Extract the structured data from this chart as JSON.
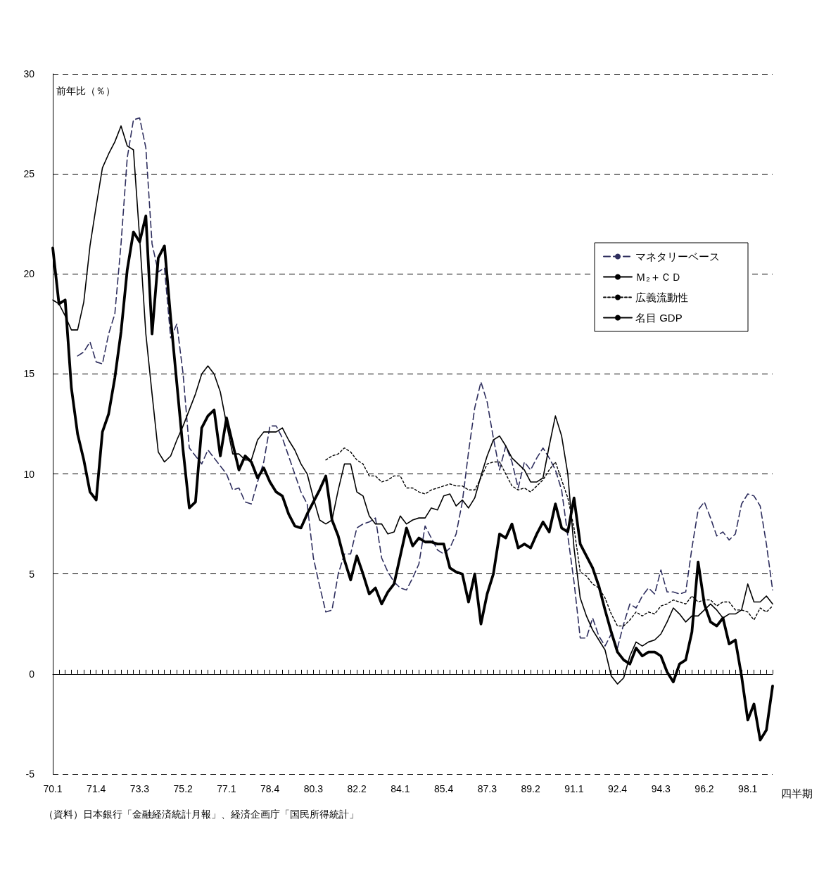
{
  "chart_data": {
    "type": "line",
    "ylabel": "前年比（％）",
    "xlabel": "四半期",
    "annotations": [
      "（資料）日本銀行「金融経済統計月報」、経済企画庁「国民所得統計」"
    ],
    "categories": [
      "70.1",
      null,
      null,
      null,
      null,
      null,
      null,
      "71.4",
      null,
      null,
      null,
      null,
      null,
      null,
      "73.3",
      null,
      null,
      null,
      null,
      null,
      null,
      "75.2",
      null,
      null,
      null,
      null,
      null,
      null,
      "77.1",
      null,
      null,
      null,
      null,
      null,
      null,
      "78.4",
      null,
      null,
      null,
      null,
      null,
      null,
      "80.3",
      null,
      null,
      null,
      null,
      null,
      null,
      "82.2",
      null,
      null,
      null,
      null,
      null,
      null,
      "84.1",
      null,
      null,
      null,
      null,
      null,
      null,
      "85.4",
      null,
      null,
      null,
      null,
      null,
      null,
      "87.3",
      null,
      null,
      null,
      null,
      null,
      null,
      "89.2",
      null,
      null,
      null,
      null,
      null,
      null,
      "91.1",
      null,
      null,
      null,
      null,
      null,
      null,
      "92.4",
      null,
      null,
      null,
      null,
      null,
      null,
      "94.3",
      null,
      null,
      null,
      null,
      null,
      null,
      "96.2",
      null,
      null,
      null,
      null,
      null,
      null,
      "98.1",
      null,
      null,
      null,
      null
    ],
    "series": [
      {
        "name": "マネタリーベース",
        "color": "#2e2e5e",
        "line_style": "dashed",
        "values": [
          null,
          null,
          null,
          null,
          15.9,
          16.1,
          16.6,
          15.6,
          15.5,
          17.0,
          18.0,
          21.5,
          25.8,
          27.7,
          27.8,
          26.3,
          21.5,
          20.1,
          20.3,
          16.8,
          17.5,
          15.0,
          11.3,
          10.9,
          10.5,
          11.2,
          10.8,
          10.4,
          10.0,
          9.2,
          9.3,
          8.6,
          8.5,
          9.6,
          10.6,
          12.4,
          12.4,
          11.8,
          10.9,
          10.0,
          9.1,
          8.5,
          5.8,
          4.4,
          3.1,
          3.2,
          5.0,
          6.0,
          6.0,
          7.3,
          7.5,
          7.6,
          7.8,
          5.8,
          5.1,
          4.6,
          4.3,
          4.2,
          4.8,
          5.5,
          7.4,
          6.8,
          6.2,
          6.0,
          6.3,
          7.0,
          8.6,
          11.1,
          13.3,
          14.6,
          13.6,
          11.8,
          10.2,
          11.4,
          10.6,
          9.3,
          10.6,
          10.2,
          10.8,
          11.3,
          10.8,
          10.2,
          9.2,
          6.9,
          4.6,
          1.8,
          1.8,
          2.8,
          1.9,
          1.4,
          2.0,
          1.3,
          2.5,
          3.5,
          3.3,
          3.9,
          4.3,
          4.0,
          5.2,
          4.1,
          4.1,
          4.0,
          4.1,
          6.3,
          8.2,
          8.6,
          7.8,
          6.9,
          7.1,
          6.7,
          7.0,
          8.5,
          9.0,
          8.9,
          8.4,
          6.5,
          4.2
        ]
      },
      {
        "name": "Ｍ₂＋ＣＤ",
        "color": "#000000",
        "line_style": "solid",
        "values": [
          18.7,
          18.5,
          17.9,
          17.2,
          17.2,
          18.6,
          21.4,
          23.4,
          25.3,
          26.0,
          26.6,
          27.4,
          26.4,
          26.2,
          21.8,
          17.0,
          14.0,
          11.1,
          10.6,
          10.9,
          11.7,
          12.4,
          13.2,
          14.0,
          15.0,
          15.4,
          15.0,
          14.1,
          12.5,
          11.0,
          11.0,
          10.7,
          10.7,
          11.7,
          12.1,
          12.1,
          12.1,
          12.3,
          11.7,
          11.2,
          10.5,
          10.0,
          8.8,
          7.7,
          7.5,
          7.7,
          9.2,
          10.5,
          10.5,
          9.1,
          8.9,
          7.9,
          7.5,
          7.5,
          7.0,
          7.1,
          7.9,
          7.5,
          7.7,
          7.8,
          7.8,
          8.3,
          8.2,
          8.9,
          9.0,
          8.4,
          8.7,
          8.3,
          8.8,
          9.9,
          10.9,
          11.7,
          11.9,
          11.4,
          10.8,
          10.5,
          10.2,
          9.6,
          9.6,
          9.8,
          11.4,
          12.9,
          11.9,
          10.0,
          6.3,
          3.8,
          2.9,
          2.2,
          1.7,
          1.2,
          -0.1,
          -0.5,
          -0.2,
          0.9,
          1.6,
          1.4,
          1.6,
          1.7,
          2.0,
          2.6,
          3.3,
          3.0,
          2.6,
          2.9,
          2.9,
          3.2,
          3.5,
          3.2,
          2.8,
          3.0,
          3.0,
          3.2,
          4.5,
          3.6,
          3.6,
          3.9,
          3.5
        ]
      },
      {
        "name": "広義流動性",
        "color": "#000000",
        "line_style": "dotted",
        "values": [
          null,
          null,
          null,
          null,
          null,
          null,
          null,
          null,
          null,
          null,
          null,
          null,
          null,
          null,
          null,
          null,
          null,
          null,
          null,
          null,
          null,
          null,
          null,
          null,
          null,
          null,
          null,
          null,
          null,
          null,
          null,
          null,
          null,
          null,
          null,
          null,
          null,
          null,
          null,
          null,
          null,
          null,
          null,
          null,
          10.7,
          10.9,
          11.0,
          11.3,
          11.1,
          10.7,
          10.5,
          9.9,
          9.9,
          9.6,
          9.7,
          9.9,
          9.9,
          9.3,
          9.3,
          9.1,
          9.0,
          9.2,
          9.3,
          9.4,
          9.5,
          9.4,
          9.4,
          9.2,
          9.2,
          9.8,
          10.5,
          10.6,
          10.6,
          10.0,
          9.4,
          9.2,
          9.3,
          9.1,
          9.4,
          9.7,
          10.2,
          10.6,
          9.7,
          8.8,
          7.3,
          5.1,
          4.9,
          4.5,
          4.3,
          3.8,
          3.0,
          2.4,
          2.4,
          2.7,
          3.1,
          2.9,
          3.1,
          3.0,
          3.4,
          3.5,
          3.7,
          3.6,
          3.5,
          3.9,
          3.6,
          3.7,
          3.7,
          3.4,
          3.6,
          3.6,
          3.2,
          3.2,
          3.1,
          2.7,
          3.3,
          3.1,
          3.4
        ]
      },
      {
        "name": "名目 GDP",
        "color": "#000000",
        "line_style": "solid",
        "values": [
          21.3,
          18.5,
          18.7,
          14.3,
          12.0,
          10.7,
          9.1,
          8.7,
          12.1,
          13.0,
          14.8,
          17.1,
          20.2,
          22.1,
          21.6,
          22.9,
          17.0,
          20.8,
          21.4,
          17.8,
          14.5,
          11.2,
          8.3,
          8.6,
          12.3,
          12.9,
          13.2,
          10.9,
          12.8,
          11.5,
          10.2,
          10.9,
          10.6,
          9.8,
          10.3,
          9.6,
          9.1,
          8.9,
          8.0,
          7.4,
          7.3,
          8.0,
          8.6,
          9.2,
          9.9,
          7.7,
          6.9,
          5.7,
          4.7,
          5.9,
          5.0,
          4.0,
          4.3,
          3.5,
          4.1,
          4.5,
          5.9,
          7.3,
          6.4,
          6.8,
          6.6,
          6.6,
          6.5,
          6.5,
          5.3,
          5.1,
          5.0,
          3.6,
          5.0,
          2.5,
          4.0,
          5.0,
          7.0,
          6.8,
          7.5,
          6.3,
          6.5,
          6.3,
          7.0,
          7.6,
          7.1,
          8.5,
          7.3,
          7.1,
          8.8,
          6.5,
          5.9,
          5.3,
          4.4,
          3.2,
          2.1,
          1.1,
          0.7,
          0.5,
          1.3,
          0.9,
          1.1,
          1.1,
          0.9,
          0.1,
          -0.4,
          0.5,
          0.7,
          2.1,
          5.6,
          3.5,
          2.6,
          2.4,
          2.8,
          1.5,
          1.7,
          -0.1,
          -2.3,
          -1.5,
          -3.3,
          -2.8,
          -0.6
        ]
      }
    ],
    "ylim": [
      -5,
      30
    ],
    "yticks": [
      -5,
      0,
      5,
      10,
      15,
      20,
      25,
      30
    ],
    "grid": "y",
    "legend": "top right",
    "marker": "none"
  }
}
